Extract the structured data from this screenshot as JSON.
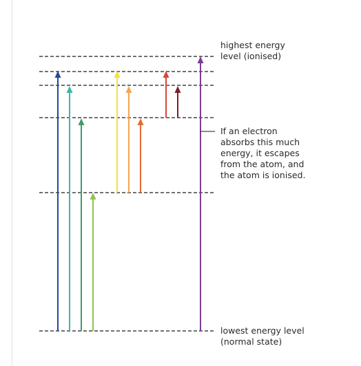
{
  "labels": {
    "highest": [
      "highest energy",
      "level (ionised)"
    ],
    "annotation": [
      "If an electron",
      "absorbs this much",
      "energy, it escapes",
      "from the atom, and",
      "the atom is ionised."
    ],
    "lowest": [
      "lowest energy level",
      "(normal state)"
    ]
  },
  "colors": {
    "dashes": "#1a1a1a",
    "arrows": [
      "#27479a",
      "#3cb6a9",
      "#3f9a6c",
      "#92c24d",
      "#f2e33b",
      "#f4a64e",
      "#e56a32",
      "#d6463b",
      "#7c1f2a",
      "#7a3d93"
    ]
  }
}
